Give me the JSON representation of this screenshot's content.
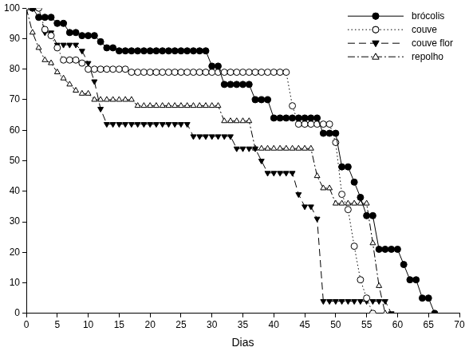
{
  "chart_data": {
    "type": "line",
    "x_label": "Dias",
    "xlim": [
      0,
      70
    ],
    "xticks": [
      0,
      5,
      10,
      15,
      20,
      25,
      30,
      35,
      40,
      45,
      50,
      55,
      60,
      65,
      70
    ],
    "ylim": [
      0,
      100
    ],
    "yticks": [
      0,
      10,
      20,
      30,
      40,
      50,
      60,
      70,
      80,
      90,
      100
    ],
    "grid": false,
    "legend": "upper right",
    "series": [
      {
        "name": "brócolis",
        "color": "#000000",
        "marker": "circle",
        "line_style": "solid",
        "x": [
          1,
          2,
          3,
          4,
          5,
          6,
          7,
          8,
          9,
          10,
          11,
          12,
          13,
          14,
          15,
          16,
          17,
          18,
          19,
          20,
          21,
          22,
          23,
          24,
          25,
          26,
          27,
          28,
          29,
          30,
          31,
          32,
          33,
          34,
          35,
          36,
          37,
          38,
          39,
          40,
          41,
          42,
          43,
          44,
          45,
          46,
          47,
          48,
          49,
          50,
          51,
          52,
          53,
          54,
          55,
          56,
          57,
          58,
          59,
          60,
          61,
          62,
          63,
          64,
          65,
          66
        ],
        "values": [
          100,
          97,
          97,
          97,
          95,
          95,
          92,
          92,
          91,
          91,
          91,
          89,
          87,
          87,
          86,
          86,
          86,
          86,
          86,
          86,
          86,
          86,
          86,
          86,
          86,
          86,
          86,
          86,
          86,
          81,
          81,
          75,
          75,
          75,
          75,
          75,
          70,
          70,
          70,
          64,
          64,
          64,
          64,
          64,
          64,
          64,
          64,
          59,
          59,
          59,
          48,
          48,
          43,
          38,
          32,
          32,
          21,
          21,
          21,
          21,
          16,
          11,
          11,
          5,
          5,
          0
        ]
      },
      {
        "name": "couve",
        "color": "#000000",
        "marker": "circle_open",
        "line_style": "dotted",
        "x": [
          2,
          3,
          4,
          5,
          6,
          7,
          8,
          9,
          10,
          11,
          12,
          13,
          14,
          15,
          16,
          17,
          18,
          19,
          20,
          21,
          22,
          23,
          24,
          25,
          26,
          27,
          28,
          29,
          30,
          31,
          32,
          33,
          34,
          35,
          36,
          37,
          38,
          39,
          40,
          41,
          42,
          43,
          44,
          45,
          46,
          47,
          48,
          49,
          50,
          51,
          52,
          53,
          54,
          55,
          56
        ],
        "values": [
          100,
          93,
          91,
          87,
          83,
          83,
          83,
          82,
          80,
          80,
          80,
          80,
          80,
          80,
          80,
          79,
          79,
          79,
          79,
          79,
          79,
          79,
          79,
          79,
          79,
          79,
          79,
          79,
          79,
          79,
          79,
          79,
          79,
          79,
          79,
          79,
          79,
          79,
          79,
          79,
          79,
          68,
          62,
          62,
          62,
          62,
          62,
          62,
          56,
          39,
          34,
          22,
          11,
          5,
          0
        ]
      },
      {
        "name": "couve flor",
        "color": "#000000",
        "marker": "triangle_down",
        "line_style": "dashed",
        "x": [
          1,
          2,
          3,
          4,
          5,
          6,
          7,
          8,
          9,
          10,
          11,
          12,
          13,
          14,
          15,
          16,
          17,
          18,
          19,
          20,
          21,
          22,
          23,
          24,
          25,
          26,
          27,
          28,
          29,
          30,
          31,
          32,
          33,
          34,
          35,
          36,
          37,
          38,
          39,
          40,
          41,
          42,
          43,
          44,
          45,
          46,
          47,
          48,
          49,
          50,
          51,
          52,
          53,
          54,
          55,
          56,
          57,
          58,
          59
        ],
        "values": [
          100,
          100,
          92,
          92,
          88,
          88,
          88,
          88,
          86,
          82,
          76,
          67,
          62,
          62,
          62,
          62,
          62,
          62,
          62,
          62,
          62,
          62,
          62,
          62,
          62,
          62,
          58,
          58,
          58,
          58,
          58,
          58,
          58,
          54,
          54,
          54,
          54,
          50,
          46,
          46,
          46,
          46,
          46,
          39,
          35,
          35,
          31,
          4,
          4,
          4,
          4,
          4,
          4,
          4,
          4,
          4,
          4,
          4,
          0
        ]
      },
      {
        "name": "repolho",
        "color": "#000000",
        "marker": "triangle_open",
        "line_style": "dashdot",
        "x": [
          0,
          1,
          2,
          3,
          4,
          5,
          6,
          7,
          8,
          9,
          10,
          11,
          12,
          13,
          14,
          15,
          16,
          17,
          18,
          19,
          20,
          21,
          22,
          23,
          24,
          25,
          26,
          27,
          28,
          29,
          30,
          31,
          32,
          33,
          34,
          35,
          36,
          37,
          38,
          39,
          40,
          41,
          42,
          43,
          44,
          45,
          46,
          47,
          48,
          49,
          50,
          51,
          52,
          53,
          54,
          55,
          56,
          57,
          58
        ],
        "values": [
          100,
          92,
          87,
          83,
          82,
          79,
          77,
          75,
          73,
          72,
          72,
          70,
          70,
          70,
          70,
          70,
          70,
          70,
          68,
          68,
          68,
          68,
          68,
          68,
          68,
          68,
          68,
          68,
          68,
          68,
          68,
          68,
          63,
          63,
          63,
          63,
          63,
          54,
          54,
          54,
          54,
          54,
          54,
          54,
          54,
          54,
          54,
          45,
          41,
          41,
          36,
          36,
          36,
          36,
          36,
          36,
          23,
          9,
          0
        ]
      }
    ]
  }
}
